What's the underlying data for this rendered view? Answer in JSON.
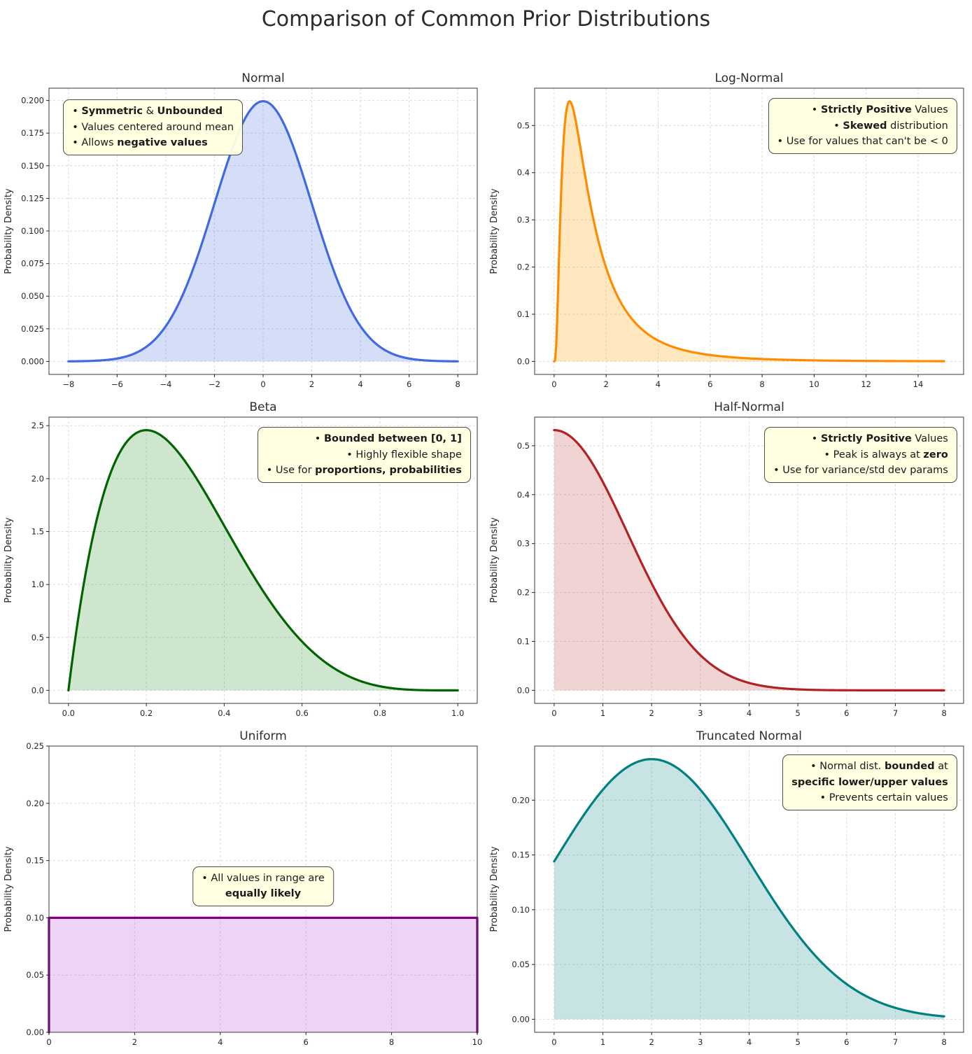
{
  "figure_title": "Comparison of Common Prior Distributions",
  "annotation_bg": "#ffffe0",
  "chart_data": [
    {
      "id": "normal",
      "type": "line",
      "title": "Normal",
      "ylabel": "Probability Density",
      "line_color": "#4169e1",
      "fill_color": "rgba(65,105,225,0.22)",
      "dist": {
        "kind": "normal",
        "mu": 0,
        "sigma": 2
      },
      "x_range": [
        -8,
        8
      ],
      "x_axis": [
        -8.8,
        8.8
      ],
      "y_axis": [
        -0.00997,
        0.20945
      ],
      "x_ticks": [
        -8,
        -6,
        -4,
        -2,
        0,
        2,
        4,
        6,
        8
      ],
      "y_ticks": [
        0.0,
        0.025,
        0.05,
        0.075,
        0.1,
        0.125,
        0.15,
        0.175,
        0.2
      ],
      "x_dec": 0,
      "y_dec": 3,
      "key_points": [
        {
          "x": 0,
          "y": 0.1995
        },
        {
          "x": -8,
          "y": 0.0001
        },
        {
          "x": 8,
          "y": 0.0001
        }
      ],
      "annotation": {
        "anchor": "tl",
        "x": 0.033,
        "y": 0.04,
        "align": "left",
        "lines": [
          [
            {
              "t": "• "
            },
            {
              "t": "Symmetric",
              "b": true
            },
            {
              "t": " & "
            },
            {
              "t": "Unbounded",
              "b": true
            }
          ],
          [
            {
              "t": "• Values centered around mean"
            }
          ],
          [
            {
              "t": "• Allows "
            },
            {
              "t": "negative values",
              "b": true
            }
          ]
        ]
      }
    },
    {
      "id": "lognormal",
      "type": "line",
      "title": "Log-Normal",
      "ylabel": "Probability Density",
      "line_color": "#ff8c00",
      "fill_color": "rgba(255,165,0,0.25)",
      "dist": {
        "kind": "lognormal",
        "mu": 0.2,
        "sigma": 0.85
      },
      "x_range": [
        0,
        15
      ],
      "x_axis": [
        -0.75,
        15.75
      ],
      "y_axis": [
        -0.0276,
        0.5791
      ],
      "x_ticks": [
        0,
        2,
        4,
        6,
        8,
        10,
        12,
        14
      ],
      "y_ticks": [
        0.0,
        0.1,
        0.2,
        0.3,
        0.4,
        0.5
      ],
      "x_dec": 0,
      "y_dec": 1,
      "key_points": [
        {
          "x": 0,
          "y": 0
        },
        {
          "x": 0.59,
          "y": 0.5515
        },
        {
          "x": 15,
          "y": 0.0004
        }
      ],
      "annotation": {
        "anchor": "tr",
        "x": 0.985,
        "y": 0.035,
        "align": "right",
        "lines": [
          [
            {
              "t": "• "
            },
            {
              "t": "Strictly Positive",
              "b": true
            },
            {
              "t": " Values"
            }
          ],
          [
            {
              "t": "• "
            },
            {
              "t": "Skewed",
              "b": true
            },
            {
              "t": " distribution"
            }
          ],
          [
            {
              "t": "• Use for values that can't be < 0"
            }
          ]
        ]
      }
    },
    {
      "id": "beta",
      "type": "line",
      "title": "Beta",
      "ylabel": "Probability Density",
      "line_color": "#006400",
      "fill_color": "rgba(34,139,34,0.22)",
      "dist": {
        "kind": "beta",
        "a": 2,
        "b": 5,
        "normalization": 30
      },
      "x_range": [
        0,
        1
      ],
      "x_axis": [
        -0.05,
        1.05
      ],
      "y_axis": [
        -0.1229,
        2.5809
      ],
      "x_ticks": [
        0.0,
        0.2,
        0.4,
        0.6,
        0.8,
        1.0
      ],
      "y_ticks": [
        0.0,
        0.5,
        1.0,
        1.5,
        2.0,
        2.5
      ],
      "x_dec": 1,
      "y_dec": 1,
      "key_points": [
        {
          "x": 0,
          "y": 0
        },
        {
          "x": 0.2,
          "y": 2.458
        },
        {
          "x": 1,
          "y": 0
        }
      ],
      "annotation": {
        "anchor": "tr",
        "x": 0.985,
        "y": 0.035,
        "align": "right",
        "lines": [
          [
            {
              "t": "• "
            },
            {
              "t": "Bounded between [0, 1]",
              "b": true
            }
          ],
          [
            {
              "t": "• Highly flexible shape"
            }
          ],
          [
            {
              "t": "• Use for "
            },
            {
              "t": "proportions, probabilities",
              "b": true
            }
          ]
        ]
      }
    },
    {
      "id": "halfnormal",
      "type": "line",
      "title": "Half-Normal",
      "ylabel": "Probability Density",
      "line_color": "#b22222",
      "fill_color": "rgba(178,34,34,0.20)",
      "dist": {
        "kind": "halfnormal",
        "sigma": 1.5
      },
      "x_range": [
        0,
        8
      ],
      "x_axis": [
        -0.4,
        8.4
      ],
      "y_axis": [
        -0.0266,
        0.5585
      ],
      "x_ticks": [
        0,
        1,
        2,
        3,
        4,
        5,
        6,
        7,
        8
      ],
      "y_ticks": [
        0.0,
        0.1,
        0.2,
        0.3,
        0.4,
        0.5
      ],
      "x_dec": 0,
      "y_dec": 1,
      "key_points": [
        {
          "x": 0,
          "y": 0.5319
        },
        {
          "x": 8,
          "y": 0.0
        }
      ],
      "annotation": {
        "anchor": "tr",
        "x": 0.985,
        "y": 0.035,
        "align": "right",
        "lines": [
          [
            {
              "t": "• "
            },
            {
              "t": "Strictly Positive",
              "b": true
            },
            {
              "t": " Values"
            }
          ],
          [
            {
              "t": "• Peak is always at "
            },
            {
              "t": "zero",
              "b": true
            }
          ],
          [
            {
              "t": "• Use for variance/std dev params"
            }
          ]
        ]
      }
    },
    {
      "id": "uniform",
      "type": "line",
      "title": "Uniform",
      "ylabel": "Probability Density",
      "line_color": "#800080",
      "fill_color": "rgba(186,85,211,0.25)",
      "dist": {
        "kind": "polyline",
        "points": [
          [
            0,
            0
          ],
          [
            0,
            0.1
          ],
          [
            10,
            0.1
          ],
          [
            10,
            0
          ]
        ]
      },
      "x_range": [
        0,
        10
      ],
      "x_axis": [
        0,
        10
      ],
      "y_axis": [
        0,
        0.25
      ],
      "x_ticks": [
        0,
        2,
        4,
        6,
        8,
        10
      ],
      "y_ticks": [
        0.0,
        0.05,
        0.1,
        0.15,
        0.2,
        0.25
      ],
      "x_dec": 0,
      "y_dec": 2,
      "key_points": [
        {
          "x": 0,
          "y": 0.1
        },
        {
          "x": 10,
          "y": 0.1
        }
      ],
      "annotation": {
        "anchor": "ct",
        "x": 0.5,
        "y": 0.42,
        "align": "center",
        "lines": [
          [
            {
              "t": "• All values in range are"
            }
          ],
          [
            {
              "t": "equally likely",
              "b": true
            }
          ]
        ]
      }
    },
    {
      "id": "truncnorm",
      "type": "line",
      "title": "Truncated Normal",
      "ylabel": "Probability Density",
      "line_color": "#008080",
      "fill_color": "rgba(0,128,128,0.22)",
      "dist": {
        "kind": "truncnorm",
        "mu": 2,
        "sigma": 2,
        "low": 0,
        "high": 8,
        "z": 0.84
      },
      "x_range": [
        0,
        8
      ],
      "x_axis": [
        -0.4,
        8.4
      ],
      "y_axis": [
        -0.0119,
        0.2494
      ],
      "x_ticks": [
        0,
        1,
        2,
        3,
        4,
        5,
        6,
        7,
        8
      ],
      "y_ticks": [
        0.0,
        0.05,
        0.1,
        0.15,
        0.2
      ],
      "x_dec": 0,
      "y_dec": 2,
      "key_points": [
        {
          "x": 0,
          "y": 0.144
        },
        {
          "x": 2,
          "y": 0.2375
        },
        {
          "x": 8,
          "y": 0.0026
        }
      ],
      "annotation": {
        "anchor": "tr",
        "x": 0.985,
        "y": 0.03,
        "align": "right",
        "lines": [
          [
            {
              "t": "• Normal dist. "
            },
            {
              "t": "bounded",
              "b": true
            },
            {
              "t": " at"
            }
          ],
          [
            {
              "t": "specific lower/upper values",
              "b": true
            }
          ],
          [
            {
              "t": "• Prevents certain values"
            }
          ]
        ]
      }
    }
  ]
}
